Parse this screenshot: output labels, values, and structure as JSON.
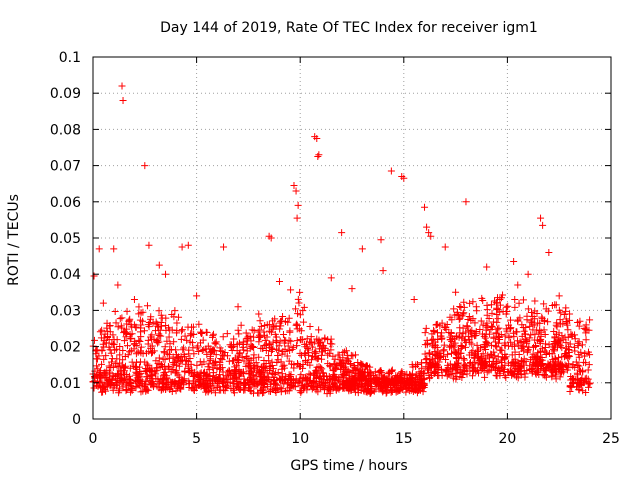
{
  "chart_data": {
    "type": "scatter",
    "title": "Day 144 of 2019, Rate Of TEC Index for receiver igm1",
    "xlabel": "GPS time / hours",
    "ylabel": "ROTI / TECUs",
    "xlim": [
      0,
      25
    ],
    "ylim": [
      0,
      0.1
    ],
    "xticks": [
      0,
      5,
      10,
      15,
      20,
      25
    ],
    "xtick_labels": [
      "0",
      "5",
      "10",
      "15",
      "20",
      "25"
    ],
    "yticks": [
      0,
      0.01,
      0.02,
      0.03,
      0.04,
      0.05,
      0.06,
      0.07,
      0.08,
      0.09,
      0.1
    ],
    "ytick_labels": [
      "0",
      "0.01",
      "0.02",
      "0.03",
      "0.04",
      "0.05",
      "0.06",
      "0.07",
      "0.08",
      "0.09",
      "0.1"
    ],
    "grid": true,
    "marker": "+",
    "color": "#ff0000",
    "series": [
      {
        "name": "ROTI",
        "x": [
          0.05,
          0.3,
          1.0,
          1.4,
          1.45,
          2.5,
          2.7,
          3.2,
          4.3,
          4.6,
          6.3,
          8.5,
          8.6,
          9.7,
          9.8,
          9.85,
          9.9,
          10.7,
          10.8,
          10.85,
          10.9,
          12.0,
          13.0,
          13.9,
          14.4,
          14.9,
          15.0,
          16.0,
          16.1,
          16.2,
          16.3,
          17.0,
          18.0,
          19.0,
          20.3,
          21.6,
          21.7,
          22.0,
          0.5,
          1.2,
          2.0,
          3.5,
          5.0,
          7.0,
          8.0,
          9.0,
          11.5,
          12.5,
          14.0,
          15.5,
          17.5,
          18.5,
          19.5,
          20.5,
          21.0,
          22.5,
          23.0,
          23.5,
          23.8
        ],
        "y": [
          0.0395,
          0.047,
          0.047,
          0.092,
          0.088,
          0.07,
          0.048,
          0.0425,
          0.0475,
          0.048,
          0.0475,
          0.0505,
          0.05,
          0.0645,
          0.063,
          0.0555,
          0.059,
          0.078,
          0.0775,
          0.0725,
          0.073,
          0.0515,
          0.047,
          0.0495,
          0.0685,
          0.067,
          0.0665,
          0.0585,
          0.053,
          0.0515,
          0.0505,
          0.0475,
          0.06,
          0.042,
          0.0435,
          0.0555,
          0.0535,
          0.046,
          0.032,
          0.037,
          0.033,
          0.04,
          0.034,
          0.031,
          0.029,
          0.038,
          0.039,
          0.036,
          0.041,
          0.033,
          0.035,
          0.031,
          0.032,
          0.037,
          0.04,
          0.034,
          0.029,
          0.027,
          0.026
        ],
        "band": {
          "description": "dense cloud of 15-minute ROTI samples from 0 to 24 h",
          "x_range": [
            0,
            24
          ],
          "typical_min": 0.005,
          "typical_max": 0.025
        }
      }
    ]
  }
}
